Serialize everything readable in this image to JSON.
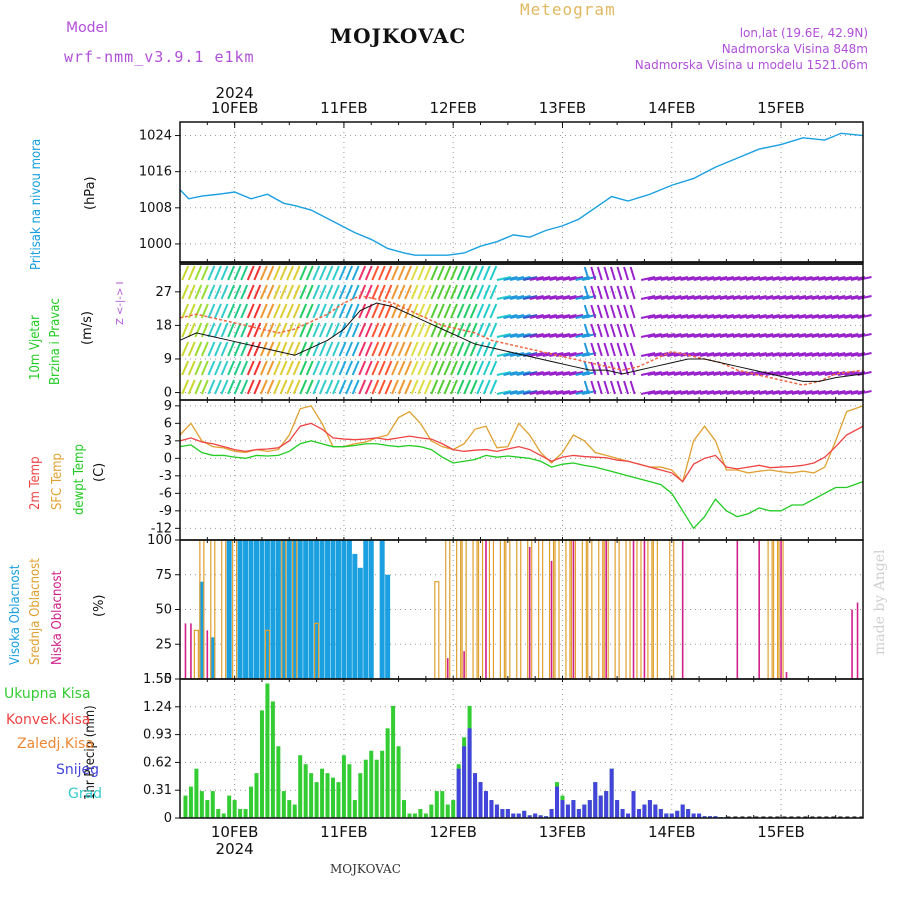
{
  "header": {
    "model_label": "Model",
    "model_name": "wrf-nmm_v3.9.1 e1km",
    "title": "MOJKOVAC",
    "meteogram": "Meteogram",
    "lonlat": "lon,lat (19.6E, 42.9N)",
    "elevation": "Nadmorska Visina 848m",
    "model_elevation": "Nadmorska Visina u modelu 1521.06m",
    "year_top": "2024",
    "year_bottom": "2024",
    "footer": "MOJKOVAC",
    "credit": "made by Angel",
    "day_labels": [
      "10FEB",
      "11FEB",
      "12FEB",
      "13FEB",
      "14FEB",
      "15FEB"
    ]
  },
  "panel_labels": {
    "pressure": {
      "name": "Pritisak na nivou mora",
      "unit": "(hPa)"
    },
    "wind": {
      "name1": "10m Vjetar",
      "name2": "Brzina i Pravac",
      "unit": "(m/s)",
      "compass": "Z  <-|->  I"
    },
    "temp": {
      "name1": "2m Temp",
      "name2": "SFC Temp",
      "name3": "dewpt Temp",
      "unit": "(C)"
    },
    "cloud": {
      "name1": "Visoka Oblacnost",
      "name2": "Srednja Oblacnost",
      "name3": "Niska Oblacnost",
      "unit": "(%)"
    },
    "precip": {
      "axis": "1hr Precip (mm)",
      "legend": [
        "Ukupna Kisa",
        "Konvek.Kisa",
        "Zaledj.Kisa",
        "Snijeg",
        "Grad"
      ]
    }
  },
  "colors": {
    "pressure": "#1aa0e0",
    "temp2m": "#ee4444",
    "sfc": "#e0a030",
    "dewpt": "#22cc22",
    "high": "#1aa0e0",
    "mid": "#e0a030",
    "low": "#d0208c",
    "total": "#33cc33",
    "conv": "#ee4444",
    "freezing": "#ee8833",
    "snow": "#4444dd",
    "hail": "#33cccc",
    "axis_label_blue": "#1aa0e0",
    "axis_label_green": "#22cc22"
  },
  "chart_data": [
    {
      "type": "line",
      "ylabel": "(hPa)",
      "yticks": [
        1000,
        1008,
        1016,
        1024
      ],
      "ylim": [
        996,
        1027
      ],
      "xlim": [
        0,
        6.25
      ],
      "x": [
        0,
        0.08,
        0.2,
        0.35,
        0.5,
        0.65,
        0.8,
        0.95,
        1.05,
        1.2,
        1.4,
        1.6,
        1.75,
        1.9,
        2.05,
        2.15,
        2.3,
        2.45,
        2.6,
        2.75,
        2.9,
        3.05,
        3.2,
        3.35,
        3.5,
        3.65,
        3.8,
        3.95,
        4.1,
        4.3,
        4.5,
        4.7,
        4.9,
        5.1,
        5.3,
        5.5,
        5.7,
        5.9,
        6.05,
        6.25
      ],
      "series": [
        {
          "values": [
            1012,
            1010,
            1010.6,
            1011,
            1011.5,
            1010,
            1011,
            1009,
            1008.5,
            1007.5,
            1005,
            1002.5,
            1001,
            999,
            998,
            997.5,
            997.5,
            997.5,
            998,
            999.5,
            1000.5,
            1002,
            1001.5,
            1003,
            1004,
            1005.5,
            1008,
            1010.5,
            1009.5,
            1011,
            1013,
            1014.5,
            1017,
            1019,
            1021,
            1022,
            1023.5,
            1023,
            1024.5,
            1024
          ]
        }
      ]
    },
    {
      "type": "line",
      "ylabel": "(m/s)",
      "yticks": [
        0,
        9,
        18,
        27
      ],
      "ylim": [
        -2,
        35
      ],
      "xlim": [
        0,
        6.25
      ],
      "x": [
        0,
        0.15,
        0.3,
        0.45,
        0.6,
        0.75,
        0.9,
        1.05,
        1.2,
        1.35,
        1.5,
        1.65,
        1.8,
        1.95,
        2.1,
        2.25,
        2.4,
        2.55,
        2.7,
        2.85,
        3.0,
        3.15,
        3.3,
        3.45,
        3.6,
        3.75,
        3.9,
        4.05,
        4.2,
        4.35,
        4.5,
        4.65,
        4.8,
        4.95,
        5.1,
        5.25,
        5.4,
        5.55,
        5.7,
        5.85,
        6.0,
        6.25
      ],
      "series": [
        {
          "values": [
            14,
            16,
            15,
            14,
            13,
            12,
            11,
            10,
            12,
            14,
            17,
            22,
            24,
            23,
            21,
            19,
            17,
            15,
            13,
            12,
            11,
            10,
            9,
            8,
            7,
            6,
            6,
            5,
            6,
            7,
            8,
            9,
            9,
            8,
            7,
            6,
            5,
            4,
            3,
            3,
            4,
            5
          ]
        },
        {
          "values": [
            20,
            21,
            20,
            19,
            18,
            17,
            16,
            17,
            19,
            21,
            24,
            26,
            25,
            24,
            22,
            20,
            18,
            17,
            16,
            14,
            13,
            12,
            11,
            10,
            9,
            8,
            7,
            6,
            7,
            9,
            11,
            10,
            9,
            8,
            6,
            5,
            4,
            3,
            2,
            3,
            5,
            6
          ]
        }
      ]
    },
    {
      "type": "line",
      "ylabel": "(C)",
      "yticks": [
        -12,
        -9,
        -6,
        -3,
        0,
        3,
        6,
        9
      ],
      "ylim": [
        -14,
        10
      ],
      "xlim": [
        0,
        6.25
      ],
      "x": [
        0,
        0.1,
        0.2,
        0.3,
        0.4,
        0.5,
        0.6,
        0.7,
        0.8,
        0.9,
        1.0,
        1.1,
        1.2,
        1.3,
        1.4,
        1.5,
        1.6,
        1.7,
        1.8,
        1.9,
        2.0,
        2.1,
        2.2,
        2.3,
        2.4,
        2.5,
        2.6,
        2.7,
        2.8,
        2.9,
        3.0,
        3.1,
        3.2,
        3.3,
        3.4,
        3.5,
        3.6,
        3.7,
        3.8,
        3.9,
        4.0,
        4.1,
        4.2,
        4.3,
        4.4,
        4.5,
        4.6,
        4.7,
        4.8,
        4.9,
        5.0,
        5.1,
        5.2,
        5.3,
        5.4,
        5.5,
        5.6,
        5.7,
        5.8,
        5.9,
        6.0,
        6.1,
        6.25
      ],
      "series": [
        {
          "name": "2m Temp",
          "values": [
            3,
            3.5,
            2.8,
            2.5,
            2,
            1.5,
            1.2,
            1.5,
            1.6,
            1.8,
            3,
            5.5,
            6,
            5,
            3.5,
            3.3,
            3.2,
            3.3,
            3.5,
            3.2,
            3.5,
            3.8,
            3.5,
            3.3,
            2.5,
            1.5,
            1.2,
            1.4,
            1.5,
            1.2,
            1.6,
            2,
            1.5,
            0.5,
            -0.5,
            0.2,
            0.5,
            0.3,
            0.2,
            0.1,
            -0.3,
            -0.5,
            -1,
            -1.5,
            -2,
            -2.5,
            -4,
            -1,
            0,
            0.5,
            -1.5,
            -1.8,
            -1.5,
            -1.2,
            -1.6,
            -1.5,
            -1.4,
            -1.2,
            -0.8,
            0.2,
            2,
            4,
            5.5
          ]
        },
        {
          "name": "SFC Temp",
          "values": [
            4,
            6,
            3,
            2,
            1.8,
            1.2,
            1,
            1.5,
            1.2,
            1.5,
            4,
            8.5,
            9,
            6,
            2,
            2,
            2.5,
            2.8,
            3.5,
            4,
            7,
            8,
            6,
            3,
            2,
            1.5,
            2.5,
            5,
            5.5,
            1.8,
            2,
            6,
            4,
            1,
            -0.8,
            1,
            4,
            3,
            1,
            0.5,
            0,
            -0.5,
            -1,
            -1.5,
            -1.5,
            -2,
            -4,
            3,
            5.5,
            3,
            -2,
            -2,
            -2.5,
            -2.2,
            -2,
            -2.3,
            -2.5,
            -2.2,
            -2.5,
            -1.5,
            3,
            8,
            9
          ]
        },
        {
          "name": "dewpt Temp",
          "values": [
            2,
            2.3,
            1,
            0.5,
            0.5,
            0.2,
            0,
            0.5,
            0.4,
            0.5,
            1.2,
            2.5,
            3,
            2.5,
            2,
            2,
            2.2,
            2.5,
            2.5,
            2.2,
            2,
            2.2,
            2,
            1.5,
            0.2,
            -0.8,
            -0.5,
            -0.2,
            0.5,
            0.2,
            0.4,
            0.2,
            0,
            -0.5,
            -1.5,
            -1,
            -0.8,
            -1.2,
            -1.5,
            -2,
            -2.5,
            -3,
            -3.5,
            -4,
            -4.5,
            -6,
            -9,
            -12,
            -10,
            -7,
            -9,
            -10,
            -9.5,
            -8.5,
            -9,
            -9,
            -8,
            -8,
            -7,
            -6,
            -5,
            -5,
            -4
          ]
        }
      ]
    },
    {
      "type": "bar",
      "ylabel": "(%)",
      "yticks": [
        0,
        25,
        50,
        75,
        100
      ],
      "ylim": [
        0,
        100
      ],
      "xlim": [
        0,
        6.25
      ],
      "series": [
        {
          "name": "Visoka Oblacnost",
          "x": [
            0.2,
            0.3,
            0.45,
            0.55,
            0.6,
            0.65,
            0.7,
            0.75,
            0.8,
            0.85,
            0.9,
            0.95,
            1.0,
            1.05,
            1.1,
            1.15,
            1.2,
            1.25,
            1.3,
            1.35,
            1.4,
            1.45,
            1.5,
            1.55,
            1.6,
            1.65,
            1.7,
            1.75,
            1.85,
            1.9
          ],
          "values": [
            70,
            30,
            100,
            100,
            100,
            100,
            100,
            100,
            100,
            100,
            100,
            100,
            100,
            100,
            100,
            100,
            100,
            100,
            100,
            100,
            100,
            100,
            100,
            100,
            90,
            80,
            100,
            100,
            100,
            75
          ]
        },
        {
          "name": "Srednja Oblacnost",
          "x": [
            0.15,
            0.2,
            0.3,
            0.4,
            0.5,
            0.8,
            0.95,
            1.05,
            1.25,
            2.35,
            2.45,
            2.55,
            2.6,
            2.7,
            2.75,
            2.85,
            2.95,
            3.0,
            3.1,
            3.2,
            3.3,
            3.4,
            3.45,
            3.55,
            3.6,
            3.7,
            3.75,
            3.85,
            3.9,
            4.0,
            4.1,
            4.2,
            4.3,
            4.35,
            4.5,
            5.4,
            5.45,
            5.5
          ],
          "values": [
            35,
            100,
            100,
            100,
            100,
            35,
            100,
            100,
            40,
            70,
            100,
            100,
            100,
            100,
            100,
            100,
            100,
            100,
            100,
            100,
            100,
            100,
            100,
            100,
            100,
            100,
            100,
            100,
            100,
            100,
            100,
            100,
            100,
            100,
            100,
            100,
            100,
            100
          ]
        },
        {
          "name": "Niska Oblacnost",
          "x": [
            0.05,
            0.1,
            0.25,
            2.45,
            2.6,
            2.8,
            3.2,
            3.4,
            3.6,
            3.9,
            4.15,
            4.25,
            4.6,
            5.1,
            5.3,
            5.5,
            5.55,
            6.15,
            6.2
          ],
          "values": [
            40,
            40,
            35,
            15,
            20,
            100,
            95,
            85,
            100,
            100,
            100,
            100,
            100,
            100,
            100,
            100,
            5,
            50,
            55
          ]
        }
      ]
    },
    {
      "type": "bar",
      "ylabel": "1hr Precip (mm)",
      "yticks": [
        0,
        0.31,
        0.62,
        0.93,
        1.24,
        1.55
      ],
      "ylim": [
        0,
        1.55
      ],
      "xlim": [
        0,
        6.25
      ],
      "x": [
        0.05,
        0.1,
        0.15,
        0.2,
        0.25,
        0.3,
        0.35,
        0.4,
        0.45,
        0.5,
        0.55,
        0.6,
        0.65,
        0.7,
        0.75,
        0.8,
        0.85,
        0.9,
        0.95,
        1.0,
        1.05,
        1.1,
        1.15,
        1.2,
        1.25,
        1.3,
        1.35,
        1.4,
        1.45,
        1.5,
        1.55,
        1.6,
        1.65,
        1.7,
        1.75,
        1.8,
        1.85,
        1.9,
        1.95,
        2.0,
        2.05,
        2.1,
        2.15,
        2.2,
        2.25,
        2.3,
        2.35,
        2.4,
        2.45,
        2.5,
        2.55,
        2.6,
        2.65,
        2.7,
        2.75,
        2.8,
        2.85,
        2.9,
        2.95,
        3.0,
        3.05,
        3.1,
        3.15,
        3.2,
        3.25,
        3.3,
        3.35,
        3.4,
        3.45,
        3.5,
        3.55,
        3.6,
        3.65,
        3.7,
        3.75,
        3.8,
        3.85,
        3.9,
        3.95,
        4.0,
        4.05,
        4.1,
        4.15,
        4.2,
        4.25,
        4.3,
        4.35,
        4.4,
        4.45,
        4.5,
        4.55,
        4.6,
        4.65,
        4.7,
        4.75,
        4.8,
        4.85,
        4.9,
        4.95,
        5.0
      ],
      "series": [
        {
          "name": "Ukupna Kisa",
          "values": [
            0.25,
            0.35,
            0.55,
            0.3,
            0.2,
            0.3,
            0.1,
            0.05,
            0.25,
            0.2,
            0.1,
            0.1,
            0.35,
            0.5,
            1.2,
            1.5,
            1.3,
            0.8,
            0.3,
            0.2,
            0.15,
            0.7,
            0.6,
            0.5,
            0.4,
            0.55,
            0.5,
            0.45,
            0.4,
            0.7,
            0.6,
            0.2,
            0.5,
            0.65,
            0.75,
            0.65,
            0.75,
            1.0,
            1.25,
            0.8,
            0.2,
            0.05,
            0.05,
            0.1,
            0.05,
            0.15,
            0.3,
            0.3,
            0.15,
            0.2,
            0.6,
            0.9,
            1.25,
            0.5,
            0.4,
            0.3,
            0.2,
            0.15,
            0.1,
            0.1,
            0.05,
            0.05,
            0.08,
            0.03,
            0.05,
            0.03,
            0.02,
            0.1,
            0.4,
            0.25,
            0.15,
            0.2,
            0.1,
            0.15,
            0.2,
            0.4,
            0.25,
            0.3,
            0.55,
            0.2,
            0.1,
            0.05,
            0.3,
            0.1,
            0.15,
            0.2,
            0.15,
            0.1,
            0.05,
            0.05,
            0.08,
            0.15,
            0.1,
            0.05,
            0.05,
            0.02,
            0.02,
            0.02,
            0.01,
            0.01
          ]
        },
        {
          "name": "Snijeg",
          "values": [
            0,
            0,
            0,
            0,
            0,
            0,
            0,
            0,
            0,
            0,
            0,
            0,
            0,
            0,
            0,
            0,
            0,
            0,
            0,
            0,
            0,
            0,
            0,
            0,
            0,
            0,
            0,
            0,
            0,
            0,
            0,
            0,
            0,
            0,
            0,
            0,
            0,
            0,
            0,
            0,
            0,
            0,
            0,
            0,
            0,
            0,
            0,
            0,
            0,
            0,
            0.55,
            0.8,
            1.0,
            0.5,
            0.4,
            0.3,
            0.2,
            0.15,
            0.1,
            0.1,
            0.05,
            0.05,
            0.08,
            0.03,
            0.05,
            0.03,
            0.02,
            0.1,
            0.35,
            0.2,
            0.15,
            0.2,
            0.1,
            0.15,
            0.2,
            0.4,
            0.25,
            0.3,
            0.55,
            0.2,
            0.1,
            0.05,
            0.3,
            0.1,
            0.15,
            0.2,
            0.15,
            0.1,
            0.05,
            0.05,
            0.08,
            0.15,
            0.1,
            0.05,
            0.05,
            0.02,
            0.02,
            0.02,
            0.01,
            0.01
          ]
        }
      ]
    }
  ]
}
